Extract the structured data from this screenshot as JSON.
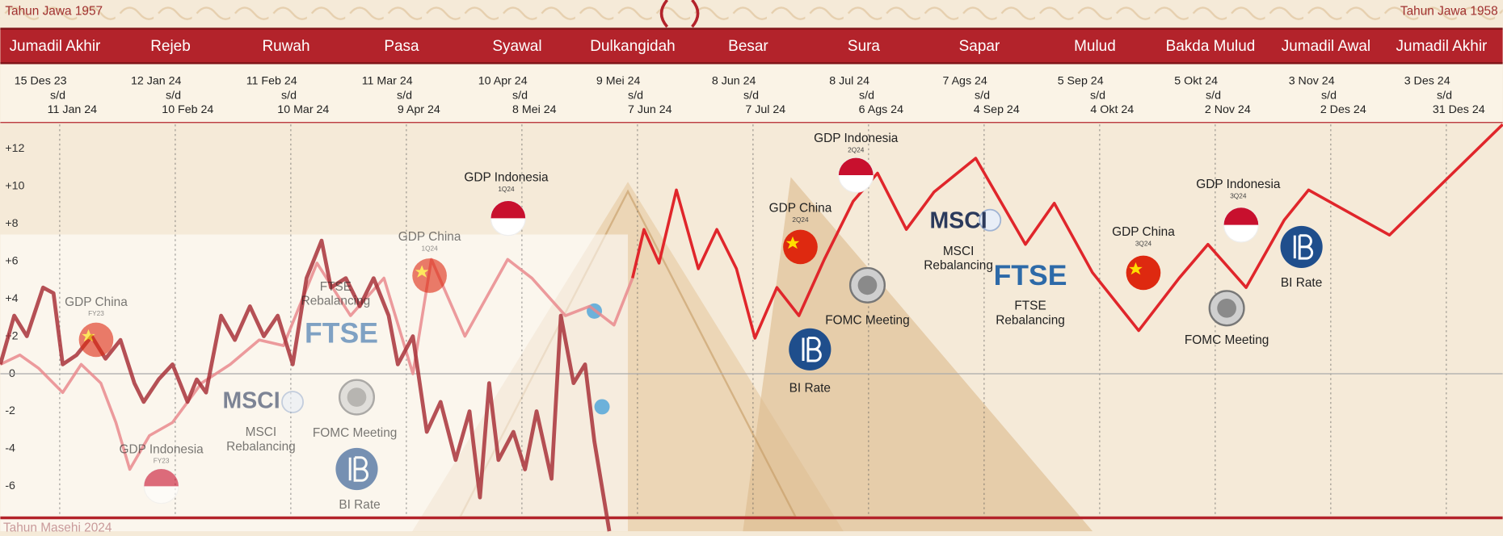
{
  "chart_data": {
    "type": "line",
    "header_left": "Tahun Jawa 1957",
    "header_right": "Tahun Jawa 1958",
    "footer_left": "Tahun Masehi 2024",
    "categories": [
      "Jumadil Akhir",
      "Rejeb",
      "Ruwah",
      "Pasa",
      "Syawal",
      "Dulkangidah",
      "Besar",
      "Sura",
      "Sapar",
      "Mulud",
      "Bakda Mulud",
      "Jumadil Awal",
      "Jumadil Akhir"
    ],
    "period_separator": "s/d",
    "periods": [
      {
        "start": "15 Des 23",
        "end": "11 Jan 24"
      },
      {
        "start": "12 Jan 24",
        "end": "10 Feb 24"
      },
      {
        "start": "11 Feb 24",
        "end": "10 Mar 24"
      },
      {
        "start": "11 Mar 24",
        "end": "9 Apr 24"
      },
      {
        "start": "10 Apr 24",
        "end": "8 Mei 24"
      },
      {
        "start": "9 Mei 24",
        "end": "7 Jun 24"
      },
      {
        "start": "8 Jun 24",
        "end": "7 Jul 24"
      },
      {
        "start": "8 Jul 24",
        "end": "6 Ags 24"
      },
      {
        "start": "7 Ags 24",
        "end": "4 Sep 24"
      },
      {
        "start": "5 Sep 24",
        "end": "4 Okt 24"
      },
      {
        "start": "5 Okt 24",
        "end": "2 Nov 24"
      },
      {
        "start": "3 Nov 24",
        "end": "2 Des 24"
      },
      {
        "start": "3 Des 24",
        "end": "31 Des 24"
      }
    ],
    "xlim": [
      0,
      13
    ],
    "ylim": [
      -8.4,
      13.3
    ],
    "yticks": [
      {
        "value": 12,
        "label": "+12"
      },
      {
        "value": 10,
        "label": "+10"
      },
      {
        "value": 8,
        "label": "+8"
      },
      {
        "value": 6,
        "label": "+6"
      },
      {
        "value": 4,
        "label": "+4"
      },
      {
        "value": 2,
        "label": "+2"
      },
      0,
      -2,
      -4,
      -6
    ],
    "series": [
      {
        "color": "#e98a8d",
        "x": [
          0,
          0.17,
          0.33,
          0.54,
          0.7,
          0.87,
          1.0,
          1.12,
          1.29,
          1.49,
          1.74,
          1.99,
          2.24,
          2.45,
          2.74,
          3.03,
          3.32,
          3.57,
          3.73,
          4.02,
          4.39,
          4.6,
          4.89,
          5.1,
          5.31,
          5.47
        ],
        "values": [
          0.5,
          1.0,
          0.3,
          -1.0,
          0.5,
          -0.5,
          -2.6,
          -5.1,
          -3.3,
          -2.6,
          -0.5,
          0.5,
          1.8,
          1.5,
          5.9,
          3.1,
          5.1,
          0,
          6.1,
          2.0,
          6.1,
          5.1,
          3.1,
          3.6,
          2.6,
          5.1
        ]
      },
      {
        "color": "#a8323a",
        "x": [
          0,
          0.12,
          0.23,
          0.37,
          0.46,
          0.54,
          0.66,
          0.79,
          0.91,
          1.04,
          1.16,
          1.24,
          1.37,
          1.49,
          1.62,
          1.7,
          1.78,
          1.91,
          2.03,
          2.16,
          2.28,
          2.4,
          2.53,
          2.65,
          2.78,
          2.86,
          2.99,
          3.11,
          3.23,
          3.36,
          3.44,
          3.57,
          3.69,
          3.81,
          3.94,
          4.06,
          4.15,
          4.23,
          4.31,
          4.44,
          4.54,
          4.64,
          4.77,
          4.85,
          4.96,
          5.06,
          5.14,
          5.27
        ],
        "values": [
          0.5,
          3.1,
          2.0,
          4.6,
          4.3,
          0.5,
          1.0,
          2.0,
          0.8,
          1.8,
          -0.5,
          -1.5,
          -0.3,
          0.5,
          -1.5,
          -0.3,
          -1.0,
          3.1,
          1.8,
          3.6,
          2.0,
          3.1,
          0.5,
          5.1,
          7.1,
          4.6,
          5.1,
          3.6,
          5.1,
          3.1,
          0.5,
          2.0,
          -3.1,
          -1.5,
          -4.6,
          -2.0,
          -6.6,
          -0.5,
          -4.6,
          -3.1,
          -5.1,
          -2.0,
          -5.6,
          3.1,
          -0.5,
          0.5,
          -3.6,
          -8.4
        ]
      },
      {
        "color": "#e0262b",
        "x": [
          5.47,
          5.57,
          5.7,
          5.85,
          6.04,
          6.2,
          6.37,
          6.53,
          6.72,
          6.91,
          7.13,
          7.38,
          7.59,
          7.84,
          8.08,
          8.44,
          8.87,
          9.12,
          9.45,
          9.85,
          10.2,
          10.45,
          10.78,
          11.11,
          11.32,
          12.02,
          13.0
        ],
        "values": [
          5.1,
          7.7,
          5.9,
          9.8,
          5.6,
          7.7,
          5.6,
          1.9,
          4.6,
          3.1,
          6.1,
          9.2,
          10.7,
          7.7,
          9.7,
          11.5,
          6.9,
          9.1,
          5.4,
          2.3,
          5.1,
          6.9,
          4.6,
          8.2,
          9.8,
          7.4,
          13.3
        ]
      }
    ],
    "annotations": [
      {
        "lines": [
          "GDP China"
        ],
        "note": "FY23"
      },
      {
        "lines": [
          "GDP Indonesia"
        ],
        "note": "FY23"
      },
      {
        "logo": "MSCI",
        "lines": [
          "MSCI",
          "Rebalancing"
        ]
      },
      {
        "logo": "FTSE",
        "lines": [
          "FTSE",
          "Rebalancing"
        ]
      },
      {
        "lines": [
          "FOMC Meeting"
        ]
      },
      {
        "lines": [
          "BI Rate"
        ]
      },
      {
        "lines": [
          "GDP China"
        ],
        "note": "1Q24"
      },
      {
        "lines": [
          "GDP Indonesia"
        ],
        "note": "1Q24"
      },
      {
        "lines": [
          "GDP Indonesia"
        ],
        "note": "2Q24"
      },
      {
        "lines": [
          "GDP China"
        ],
        "note": "2Q24"
      },
      {
        "lines": [
          "FOMC Meeting"
        ]
      },
      {
        "lines": [
          "BI Rate"
        ]
      },
      {
        "logo": "MSCI",
        "lines": [
          "MSCI",
          "Rebalancing"
        ]
      },
      {
        "logo": "FTSE",
        "lines": [
          "FTSE",
          "Rebalancing"
        ]
      },
      {
        "lines": [
          "GDP China"
        ],
        "note": "3Q24"
      },
      {
        "lines": [
          "GDP Indonesia"
        ],
        "note": "3Q24"
      },
      {
        "lines": [
          "FOMC Meeting"
        ]
      },
      {
        "lines": [
          "BI Rate"
        ]
      }
    ]
  }
}
